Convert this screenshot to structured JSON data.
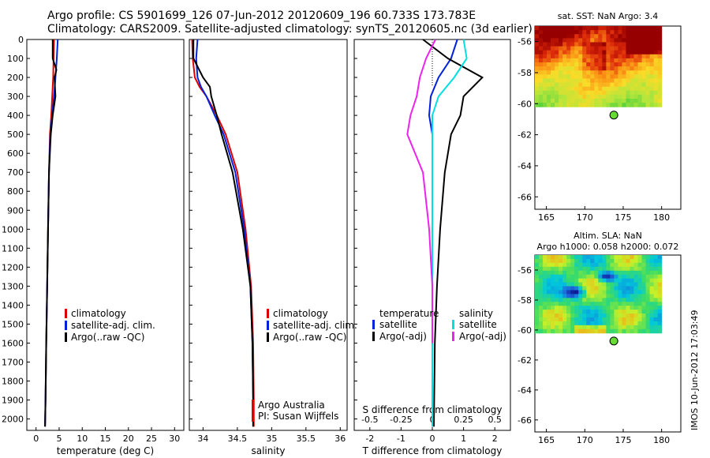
{
  "header": {
    "title_line1": "Argo profile: CS 5901699_126 07-Jun-2012 20120609_196 60.733S 173.783E",
    "title_line2": "Climatology: CARS2009. Satellite-adjusted climatology: synTS_20120605.nc (3d earlier)"
  },
  "stamp": "IMOS 10-Jun-2012 17:03:49",
  "colors": {
    "climatology": "#dd0000",
    "satellite": "#0022dd",
    "argo": "#000000",
    "salinity_satellite": "#00e0e0",
    "salinity_argo": "#ee22ee",
    "float_marker": "#66dd33"
  },
  "chart_data": [
    {
      "type": "line",
      "id": "temperature",
      "xlabel": "temperature (deg C)",
      "xlim": [
        -2,
        32
      ],
      "ylim": [
        2060,
        0
      ],
      "xticks": [
        0,
        5,
        10,
        15,
        20,
        25,
        30
      ],
      "yticks": [
        0,
        100,
        200,
        300,
        400,
        500,
        600,
        700,
        800,
        900,
        1000,
        1100,
        1200,
        1300,
        1400,
        1500,
        1600,
        1700,
        1800,
        1900,
        2000
      ],
      "legend": {
        "placement": "center",
        "entries": [
          "climatology",
          "satellite-adj. clim.",
          "Argo(..raw -QC)"
        ]
      },
      "series": [
        {
          "name": "climatology",
          "color": "climatology",
          "x": [
            3.9,
            3.8,
            3.7,
            3.5,
            3.3,
            3.0,
            2.8,
            2.6,
            2.4,
            2.2,
            2.05,
            1.95
          ],
          "y": [
            0,
            100,
            200,
            300,
            400,
            500,
            700,
            1000,
            1300,
            1600,
            1900,
            2040
          ]
        },
        {
          "name": "satellite-adj. clim.",
          "color": "satellite",
          "x": [
            4.7,
            4.5,
            4.2,
            3.9,
            3.5,
            3.1,
            2.8,
            2.6,
            2.4,
            2.2,
            2.05,
            1.95
          ],
          "y": [
            0,
            100,
            200,
            300,
            400,
            500,
            700,
            1000,
            1300,
            1600,
            1900,
            2040
          ]
        },
        {
          "name": "Argo(..raw -QC)",
          "color": "argo",
          "x": [
            3.6,
            3.6,
            4.4,
            4.0,
            4.2,
            3.6,
            3.2,
            2.8,
            2.6,
            2.4,
            2.2,
            2.05,
            1.95
          ],
          "y": [
            0,
            100,
            160,
            200,
            300,
            400,
            500,
            700,
            1000,
            1300,
            1600,
            1900,
            2040
          ]
        }
      ]
    },
    {
      "type": "line",
      "id": "salinity",
      "xlabel": "salinity",
      "xlim": [
        33.8,
        36.1
      ],
      "ylim": [
        2060,
        0
      ],
      "xticks": [
        34,
        34.5,
        35,
        35.5,
        36
      ],
      "legend": {
        "placement": "center",
        "entries": [
          "climatology",
          "satellite-adj. clim.",
          "Argo(..raw -QC)"
        ]
      },
      "annotation": [
        "Argo Australia",
        "PI: Susan Wijffels"
      ],
      "series": [
        {
          "name": "climatology",
          "color": "climatology",
          "x": [
            33.84,
            33.85,
            33.88,
            33.95,
            34.05,
            34.2,
            34.33,
            34.5,
            34.62,
            34.7,
            34.73,
            34.74,
            34.74
          ],
          "y": [
            0,
            100,
            200,
            250,
            300,
            400,
            500,
            700,
            1000,
            1300,
            1600,
            1900,
            2040
          ]
        },
        {
          "name": "satellite-adj. clim.",
          "color": "satellite",
          "x": [
            33.92,
            33.9,
            33.92,
            33.97,
            34.05,
            34.17,
            34.3,
            34.47,
            34.6,
            34.69,
            34.72,
            34.73,
            34.73
          ],
          "y": [
            0,
            100,
            200,
            250,
            300,
            400,
            500,
            700,
            1000,
            1300,
            1600,
            1900,
            2040
          ]
        },
        {
          "name": "Argo(..raw -QC)",
          "color": "argo",
          "x": [
            33.86,
            33.86,
            34.0,
            34.1,
            34.12,
            34.2,
            34.27,
            34.43,
            34.58,
            34.69,
            34.72,
            34.73,
            34.73
          ],
          "y": [
            0,
            100,
            200,
            250,
            300,
            400,
            500,
            700,
            1000,
            1300,
            1600,
            1900,
            2040
          ]
        }
      ]
    },
    {
      "type": "line",
      "id": "difference",
      "xlabel": "T difference from climatology",
      "xlabel_top": "S difference from climatology",
      "xlim": [
        -2.5,
        2.5
      ],
      "ylim": [
        2060,
        0
      ],
      "xticks": [
        -2,
        -1,
        0,
        1,
        2
      ],
      "xticks_s": [
        -0.5,
        -0.25,
        0,
        0.25,
        0.5
      ],
      "xticks_s_labels": [
        "-0.5",
        "-0.25",
        "0",
        "0.25",
        "0.5"
      ],
      "legend": {
        "placement": "bottom",
        "temperature_header": "temperature",
        "salinity_header": "salinity",
        "temperature_entries": [
          "satellite",
          "Argo(-adj)"
        ],
        "salinity_entries": [
          "satellite",
          "Argo(-adj)"
        ]
      },
      "series": [
        {
          "name": "satellite",
          "color": "satellite",
          "x": [
            0.8,
            0.6,
            0.2,
            -0.05,
            -0.1,
            0.0,
            0.0,
            0.0,
            0.0,
            0.0,
            0.0
          ],
          "y": [
            0,
            100,
            200,
            300,
            400,
            500,
            700,
            1000,
            1300,
            1600,
            2040
          ]
        },
        {
          "name": "Argo(-adj)",
          "color": "argo",
          "x": [
            -0.3,
            0.5,
            1.6,
            1.0,
            0.9,
            0.6,
            0.4,
            0.25,
            0.15,
            0.08,
            0.05
          ],
          "y": [
            0,
            100,
            200,
            300,
            400,
            500,
            700,
            1000,
            1300,
            1600,
            2040
          ]
        },
        {
          "name": "satellite",
          "color": "salinity_satellite",
          "x": [
            1.0,
            1.1,
            0.7,
            0.2,
            0.0,
            0.0,
            0.0,
            0.0,
            0.0,
            0.0,
            0.0
          ],
          "y": [
            0,
            100,
            200,
            300,
            400,
            500,
            700,
            1000,
            1300,
            1600,
            2040
          ]
        },
        {
          "name": "Argo(-adj)",
          "color": "salinity_argo",
          "x": [
            0.1,
            -0.2,
            -0.4,
            -0.5,
            -0.7,
            -0.8,
            -0.3,
            -0.1,
            0.0,
            0.0,
            0.0
          ],
          "y": [
            0,
            100,
            200,
            300,
            400,
            500,
            700,
            1000,
            1300,
            1600,
            1400
          ]
        }
      ]
    },
    {
      "type": "heatmap",
      "id": "sst-map",
      "title": "sat. SST: NaN Argo: 3.4",
      "xlim": [
        163.5,
        182.5
      ],
      "ylim": [
        -66.8,
        -55
      ],
      "xticks": [
        165,
        170,
        175,
        180
      ],
      "yticks": [
        -56,
        -58,
        -60,
        -62,
        -64,
        -66
      ],
      "data_extent": {
        "lon": [
          163.5,
          180.0
        ],
        "lat": [
          -60.2,
          -55
        ]
      },
      "float": {
        "lon": 173.783,
        "lat": -60.733
      }
    },
    {
      "type": "heatmap",
      "id": "sla-map",
      "title": "Altim. SLA: NaN",
      "subtitle": "Argo h1000: 0.058 h2000: 0.072",
      "xlim": [
        163.5,
        182.5
      ],
      "ylim": [
        -66.8,
        -55
      ],
      "xticks": [
        165,
        170,
        175,
        180
      ],
      "yticks": [
        -56,
        -58,
        -60,
        -62,
        -64,
        -66
      ],
      "data_extent": {
        "lon": [
          163.5,
          180.0
        ],
        "lat": [
          -60.2,
          -55
        ]
      },
      "float": {
        "lon": 173.783,
        "lat": -60.733
      }
    }
  ]
}
